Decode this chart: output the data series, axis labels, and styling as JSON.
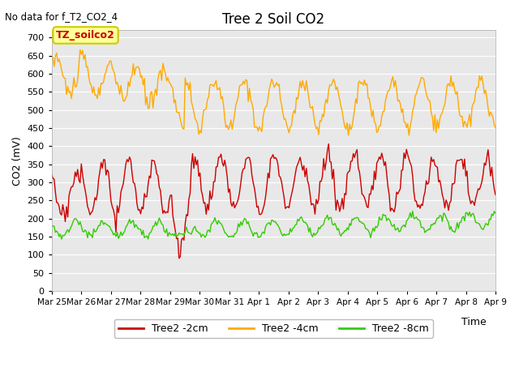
{
  "title": "Tree 2 Soil CO2",
  "subtitle": "No data for f_T2_CO2_4",
  "ylabel": "CO2 (mV)",
  "xlabel": "Time",
  "ylim": [
    0,
    720
  ],
  "yticks": [
    0,
    50,
    100,
    150,
    200,
    250,
    300,
    350,
    400,
    450,
    500,
    550,
    600,
    650,
    700
  ],
  "xtick_labels": [
    "Mar 25",
    "Mar 26",
    "Mar 27",
    "Mar 28",
    "Mar 29",
    "Mar 30",
    "Mar 31",
    "Apr 1",
    "Apr 2",
    "Apr 3",
    "Apr 4",
    "Apr 5",
    "Apr 6",
    "Apr 7",
    "Apr 8",
    "Apr 9"
  ],
  "legend_labels": [
    "Tree2 -2cm",
    "Tree2 -4cm",
    "Tree2 -8cm"
  ],
  "legend_colors": [
    "#cc0000",
    "#ffaa00",
    "#33cc00"
  ],
  "line_colors": [
    "#cc0000",
    "#ffaa00",
    "#33cc00"
  ],
  "fig_bg_color": "#ffffff",
  "plot_bg_color": "#e8e8e8",
  "grid_color": "#ffffff",
  "annotation_text": "TZ_soilco2",
  "annotation_bg": "#ffff99",
  "annotation_border": "#cccc00",
  "annotation_text_color": "#cc0000"
}
